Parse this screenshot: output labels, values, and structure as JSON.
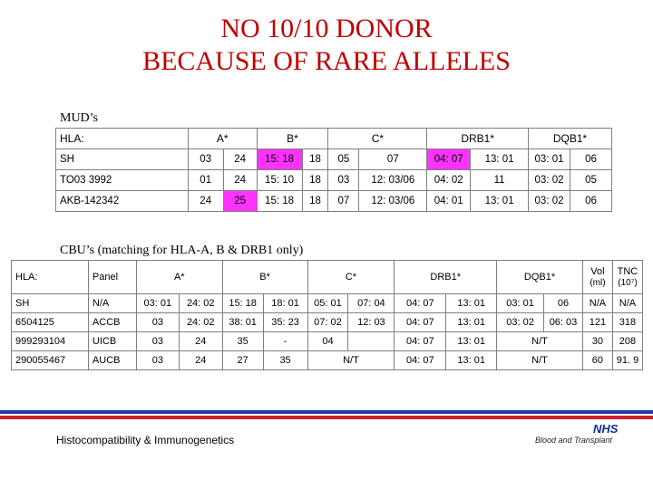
{
  "title": {
    "line1": "NO 10/10 DONOR",
    "line2": "BECAUSE OF RARE ALLELES"
  },
  "mud": {
    "label": "MUD’s",
    "header": [
      "HLA:",
      "A*",
      "B*",
      "C*",
      "DRB1*",
      "DQB1*"
    ],
    "rows": [
      {
        "name": "SH",
        "cells": [
          "03",
          "24",
          "15: 18",
          "18",
          "05",
          "07",
          "04: 07",
          "13: 01",
          "03: 01",
          "06"
        ]
      },
      {
        "name": "TO03 3992",
        "cells": [
          "01",
          "24",
          "15: 10",
          "18",
          "03",
          "12: 03/06",
          "04: 02",
          "11",
          "03: 02",
          "05"
        ]
      },
      {
        "name": "AKB-142342",
        "cells": [
          "24",
          "25",
          "15: 18",
          "18",
          "07",
          "12: 03/06",
          "04: 01",
          "13: 01",
          "03: 02",
          "06"
        ]
      }
    ]
  },
  "cbu": {
    "label": "CBU’s (matching for HLA-A, B & DRB1 only)",
    "header": [
      "HLA:",
      "Panel",
      "A*",
      "B*",
      "C*",
      "DRB1*",
      "DQB1*",
      "Vol",
      "(ml)",
      "TNC",
      "(10⁷)"
    ],
    "rows": [
      {
        "id": "SH",
        "panel": "N/A",
        "a": [
          "03: 01",
          "24: 02"
        ],
        "b": [
          "15: 18",
          "18: 01"
        ],
        "c": [
          "05: 01",
          "07: 04"
        ],
        "drb1": [
          "04: 07",
          "13: 01"
        ],
        "dqb1": [
          "03: 01",
          "06"
        ],
        "vol": "N/A",
        "tnc": "N/A"
      },
      {
        "id": "6504125",
        "panel": "ACCB",
        "a": [
          "03",
          "24: 02"
        ],
        "b": [
          "38: 01",
          "35: 23"
        ],
        "c": [
          "07: 02",
          "12: 03"
        ],
        "drb1": [
          "04: 07",
          "13: 01"
        ],
        "dqb1": [
          "03: 02",
          "06: 03"
        ],
        "vol": "121",
        "tnc": "318"
      },
      {
        "id": "999293104",
        "panel": "UICB",
        "a": [
          "03",
          "24"
        ],
        "b": [
          "35",
          "-"
        ],
        "c": [
          "04"
        ],
        "drb1": [
          "04: 07",
          "13: 01"
        ],
        "dqb1": [
          "N/T"
        ],
        "vol": "30",
        "tnc": "208"
      },
      {
        "id": "290055467",
        "panel": "AUCB",
        "a": [
          "03",
          "24"
        ],
        "b": [
          "27",
          "35"
        ],
        "c": [
          "N/T"
        ],
        "drb1": [
          "04: 07",
          "13: 01"
        ],
        "dqb1": [
          "N/T"
        ],
        "vol": "60",
        "tnc": "91. 9"
      }
    ]
  },
  "footer": {
    "left": "Histocompatibility & Immunogenetics",
    "nhs": "NHS",
    "org": "Blood and Transplant"
  },
  "colors": {
    "title": "#c00000",
    "highlight": "#ff33ff",
    "stripe_blue": "#1f3fa8",
    "stripe_red": "#d81e2a"
  }
}
